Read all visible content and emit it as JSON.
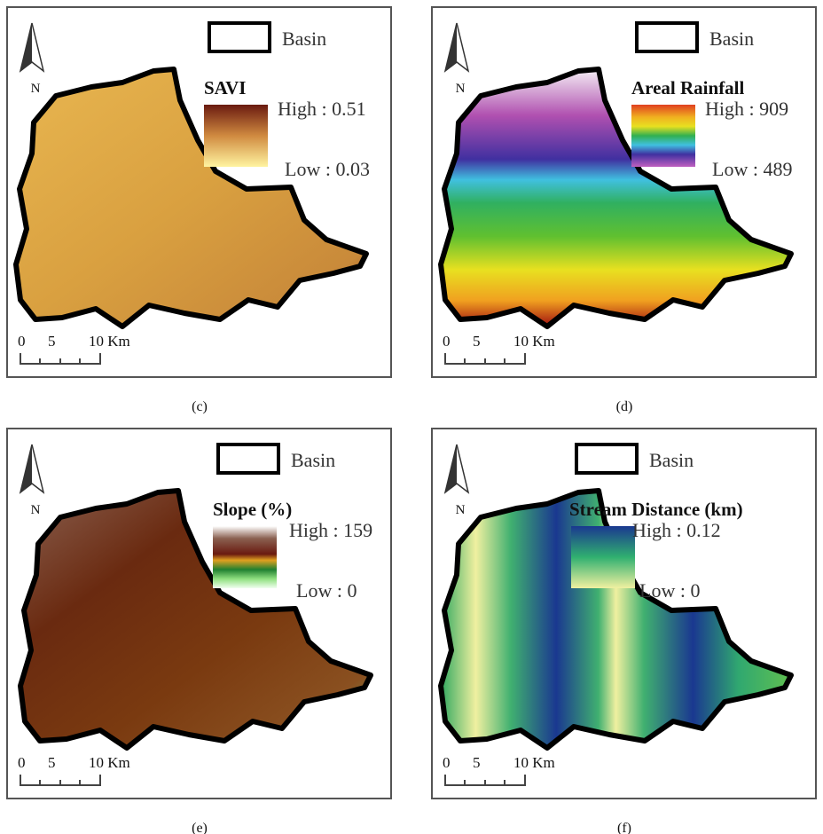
{
  "panels": [
    {
      "caption": "(c)",
      "basin_label": "Basin",
      "legend_title": "SAVI",
      "high_label": "High : 0.51",
      "low_label": "Low : 0.03",
      "north_label": "N",
      "scale_labels": [
        "0",
        "5",
        "10 Km"
      ]
    },
    {
      "caption": "(d)",
      "basin_label": "Basin",
      "legend_title": "Areal Rainfall",
      "high_label": "High : 909",
      "low_label": "Low : 489",
      "north_label": "N",
      "scale_labels": [
        "0",
        "5",
        "10 Km"
      ]
    },
    {
      "caption": "(e)",
      "basin_label": "Basin",
      "legend_title": "Slope (%)",
      "high_label": "High : 159",
      "low_label": "Low : 0",
      "north_label": "N",
      "scale_labels": [
        "0",
        "5",
        "10 Km"
      ]
    },
    {
      "caption": "(f)",
      "basin_label": "Basin",
      "legend_title": "Stream Distance (km)",
      "high_label": "High : 0.12",
      "low_label": "Low : 0",
      "north_label": "N",
      "scale_labels": [
        "0",
        "5",
        "10 Km"
      ]
    }
  ]
}
